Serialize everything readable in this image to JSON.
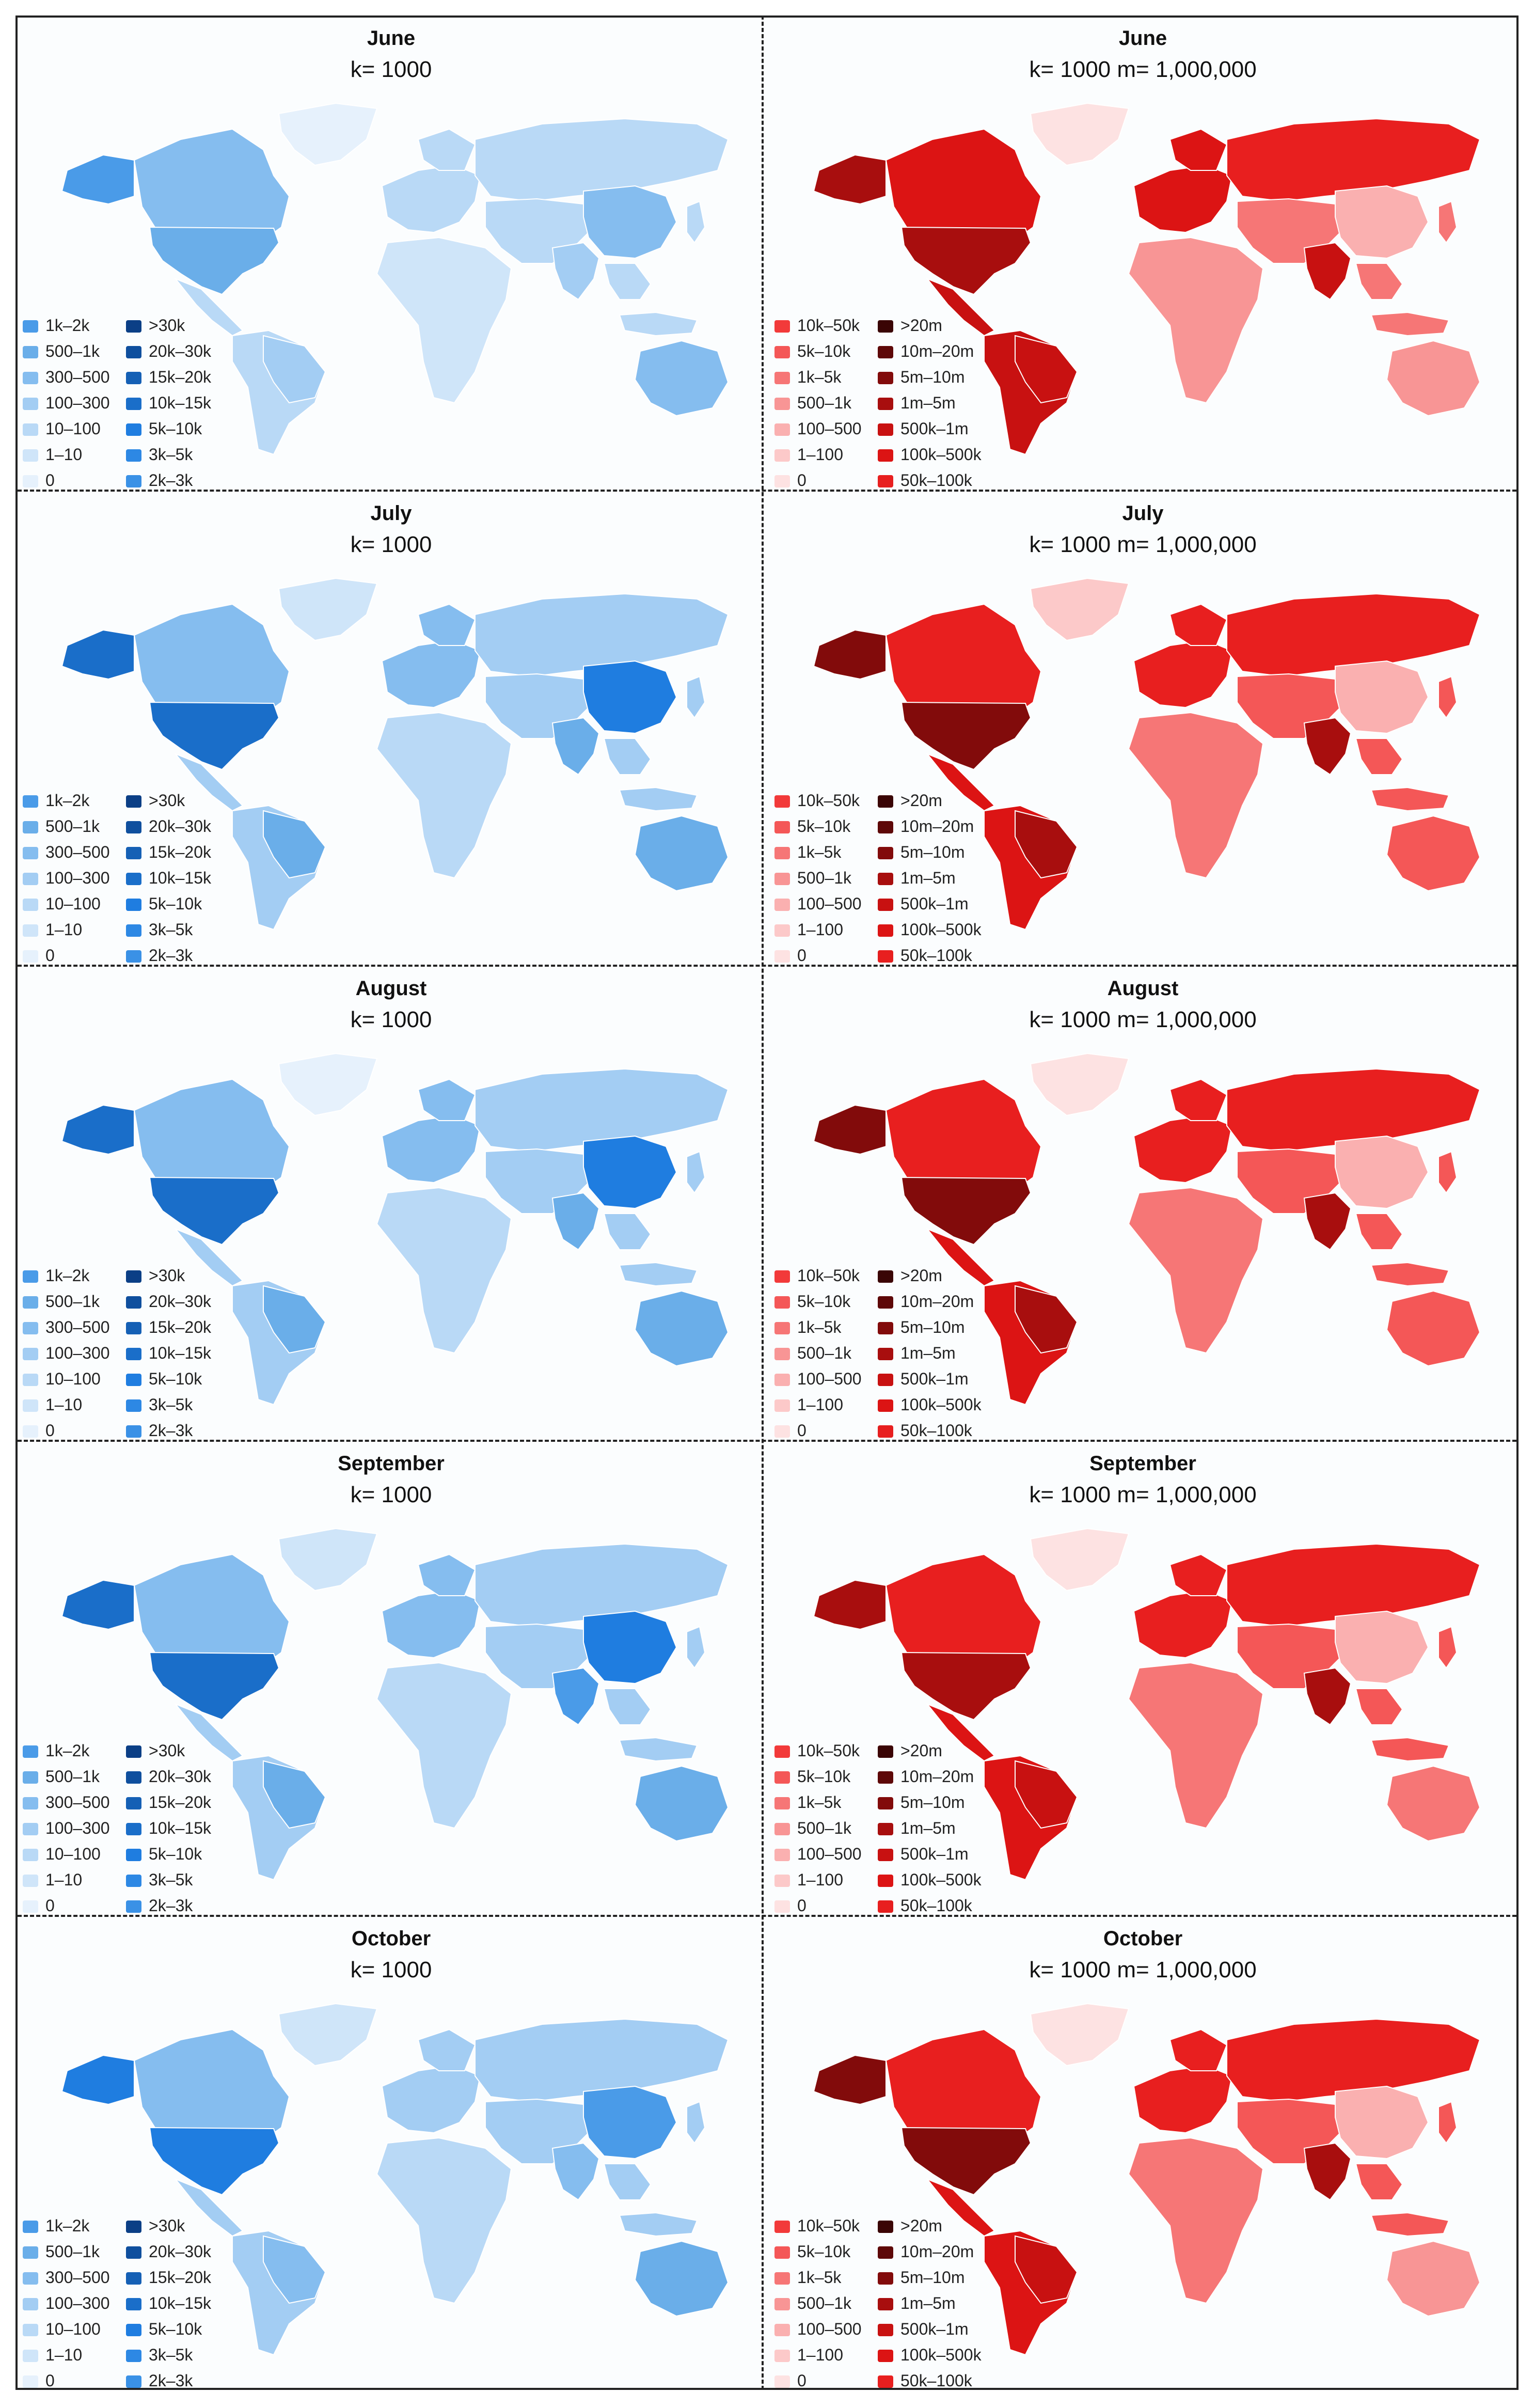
{
  "panels": [
    {
      "month": "June",
      "k": "k= 1000",
      "m": "k= 1000  m= 1,000,000"
    },
    {
      "month": "July",
      "k": "k= 1000",
      "m": "k= 1000  m= 1,000,000"
    },
    {
      "month": "August",
      "k": "k= 1000",
      "m": "k= 1000  m= 1,000,000"
    },
    {
      "month": "September",
      "k": "k= 1000",
      "m": "k= 1000  m= 1,000,000"
    },
    {
      "month": "October",
      "k": "k= 1000",
      "m": "k= 1000  m= 1,000,000"
    }
  ],
  "legend_blue": {
    "col1": [
      {
        "label": "1k–2k",
        "color": "#4a9be8"
      },
      {
        "label": "500–1k",
        "color": "#6aaee9"
      },
      {
        "label": "300–500",
        "color": "#85bdef"
      },
      {
        "label": "100–300",
        "color": "#a3cdf3"
      },
      {
        "label": "10–100",
        "color": "#b9d9f6"
      },
      {
        "label": "1–10",
        "color": "#cfe5f9"
      },
      {
        "label": "0",
        "color": "#e6f1fc"
      }
    ],
    "col2": [
      {
        "label": ">30k",
        "color": "#0b3f86"
      },
      {
        "label": "20k–30k",
        "color": "#0f4f9e"
      },
      {
        "label": "15k–20k",
        "color": "#1560b5"
      },
      {
        "label": "10k–15k",
        "color": "#1a6ec9"
      },
      {
        "label": "5k–10k",
        "color": "#1f7de0"
      },
      {
        "label": "3k–5k",
        "color": "#2d88e4"
      },
      {
        "label": "2k–3k",
        "color": "#3a91e6"
      }
    ]
  },
  "legend_red": {
    "col1": [
      {
        "label": "10k–50k",
        "color": "#f23a3a"
      },
      {
        "label": "5k–10k",
        "color": "#f45757"
      },
      {
        "label": "1k–5k",
        "color": "#f67676"
      },
      {
        "label": "500–1k",
        "color": "#f89595"
      },
      {
        "label": "100–500",
        "color": "#fab0b0"
      },
      {
        "label": "1–100",
        "color": "#fcc9c9"
      },
      {
        "label": "0",
        "color": "#fde2e2"
      }
    ],
    "col2": [
      {
        "label": ">20m",
        "color": "#3a0505"
      },
      {
        "label": "10m–20m",
        "color": "#5e0808"
      },
      {
        "label": "5m–10m",
        "color": "#820b0b"
      },
      {
        "label": "1m–5m",
        "color": "#a80e0e"
      },
      {
        "label": "500k–1m",
        "color": "#c81111"
      },
      {
        "label": "100k–500k",
        "color": "#dc1414"
      },
      {
        "label": "50k–100k",
        "color": "#e81f1f"
      }
    ]
  },
  "map_levels_blue": [
    {
      "na": "#85bdef",
      "us": "#6aaee9",
      "greenland": "#e6f1fc",
      "sa": "#b9d9f6",
      "brazil": "#a3cdf3",
      "europe": "#b9d9f6",
      "africa": "#cfe5f9",
      "russia": "#b9d9f6",
      "asia": "#b9d9f6",
      "china": "#85bdef",
      "india": "#a3cdf3",
      "australia": "#85bdef",
      "alaska": "#4a9be8"
    },
    {
      "na": "#85bdef",
      "us": "#1a6ec9",
      "greenland": "#cfe5f9",
      "sa": "#a3cdf3",
      "brazil": "#6aaee9",
      "europe": "#85bdef",
      "africa": "#b9d9f6",
      "russia": "#a3cdf3",
      "asia": "#a3cdf3",
      "china": "#1f7de0",
      "india": "#6aaee9",
      "australia": "#6aaee9",
      "alaska": "#1a6ec9"
    },
    {
      "na": "#85bdef",
      "us": "#1a6ec9",
      "greenland": "#e6f1fc",
      "sa": "#a3cdf3",
      "brazil": "#6aaee9",
      "europe": "#85bdef",
      "africa": "#b9d9f6",
      "russia": "#a3cdf3",
      "asia": "#a3cdf3",
      "china": "#1f7de0",
      "india": "#6aaee9",
      "australia": "#6aaee9",
      "alaska": "#1a6ec9"
    },
    {
      "na": "#85bdef",
      "us": "#1a6ec9",
      "greenland": "#cfe5f9",
      "sa": "#a3cdf3",
      "brazil": "#6aaee9",
      "europe": "#85bdef",
      "africa": "#b9d9f6",
      "russia": "#a3cdf3",
      "asia": "#a3cdf3",
      "china": "#1f7de0",
      "india": "#4a9be8",
      "australia": "#6aaee9",
      "alaska": "#1a6ec9"
    },
    {
      "na": "#85bdef",
      "us": "#1f7de0",
      "greenland": "#cfe5f9",
      "sa": "#a3cdf3",
      "brazil": "#85bdef",
      "europe": "#a3cdf3",
      "africa": "#b9d9f6",
      "russia": "#a3cdf3",
      "asia": "#a3cdf3",
      "china": "#4a9be8",
      "india": "#85bdef",
      "australia": "#6aaee9",
      "alaska": "#1f7de0"
    }
  ],
  "map_levels_red": [
    {
      "na": "#dc1414",
      "us": "#a80e0e",
      "greenland": "#fde2e2",
      "sa": "#c81111",
      "brazil": "#c81111",
      "europe": "#dc1414",
      "africa": "#f89595",
      "russia": "#e81f1f",
      "asia": "#f67676",
      "china": "#fab0b0",
      "india": "#c81111",
      "australia": "#f89595",
      "alaska": "#a80e0e"
    },
    {
      "na": "#e81f1f",
      "us": "#820b0b",
      "greenland": "#fcc9c9",
      "sa": "#dc1414",
      "brazil": "#a80e0e",
      "europe": "#e81f1f",
      "africa": "#f67676",
      "russia": "#e81f1f",
      "asia": "#f45757",
      "china": "#fab0b0",
      "india": "#a80e0e",
      "australia": "#f45757",
      "alaska": "#820b0b"
    },
    {
      "na": "#e81f1f",
      "us": "#820b0b",
      "greenland": "#fde2e2",
      "sa": "#dc1414",
      "brazil": "#a80e0e",
      "europe": "#e81f1f",
      "africa": "#f67676",
      "russia": "#e81f1f",
      "asia": "#f45757",
      "china": "#fab0b0",
      "india": "#a80e0e",
      "australia": "#f45757",
      "alaska": "#820b0b"
    },
    {
      "na": "#e81f1f",
      "us": "#a80e0e",
      "greenland": "#fde2e2",
      "sa": "#dc1414",
      "brazil": "#c81111",
      "europe": "#e81f1f",
      "africa": "#f67676",
      "russia": "#e81f1f",
      "asia": "#f45757",
      "china": "#fab0b0",
      "india": "#a80e0e",
      "australia": "#f67676",
      "alaska": "#a80e0e"
    },
    {
      "na": "#e81f1f",
      "us": "#820b0b",
      "greenland": "#fde2e2",
      "sa": "#dc1414",
      "brazil": "#c81111",
      "europe": "#e81f1f",
      "africa": "#f67676",
      "russia": "#e81f1f",
      "asia": "#f45757",
      "china": "#fab0b0",
      "india": "#a80e0e",
      "australia": "#f89595",
      "alaska": "#820b0b"
    }
  ]
}
